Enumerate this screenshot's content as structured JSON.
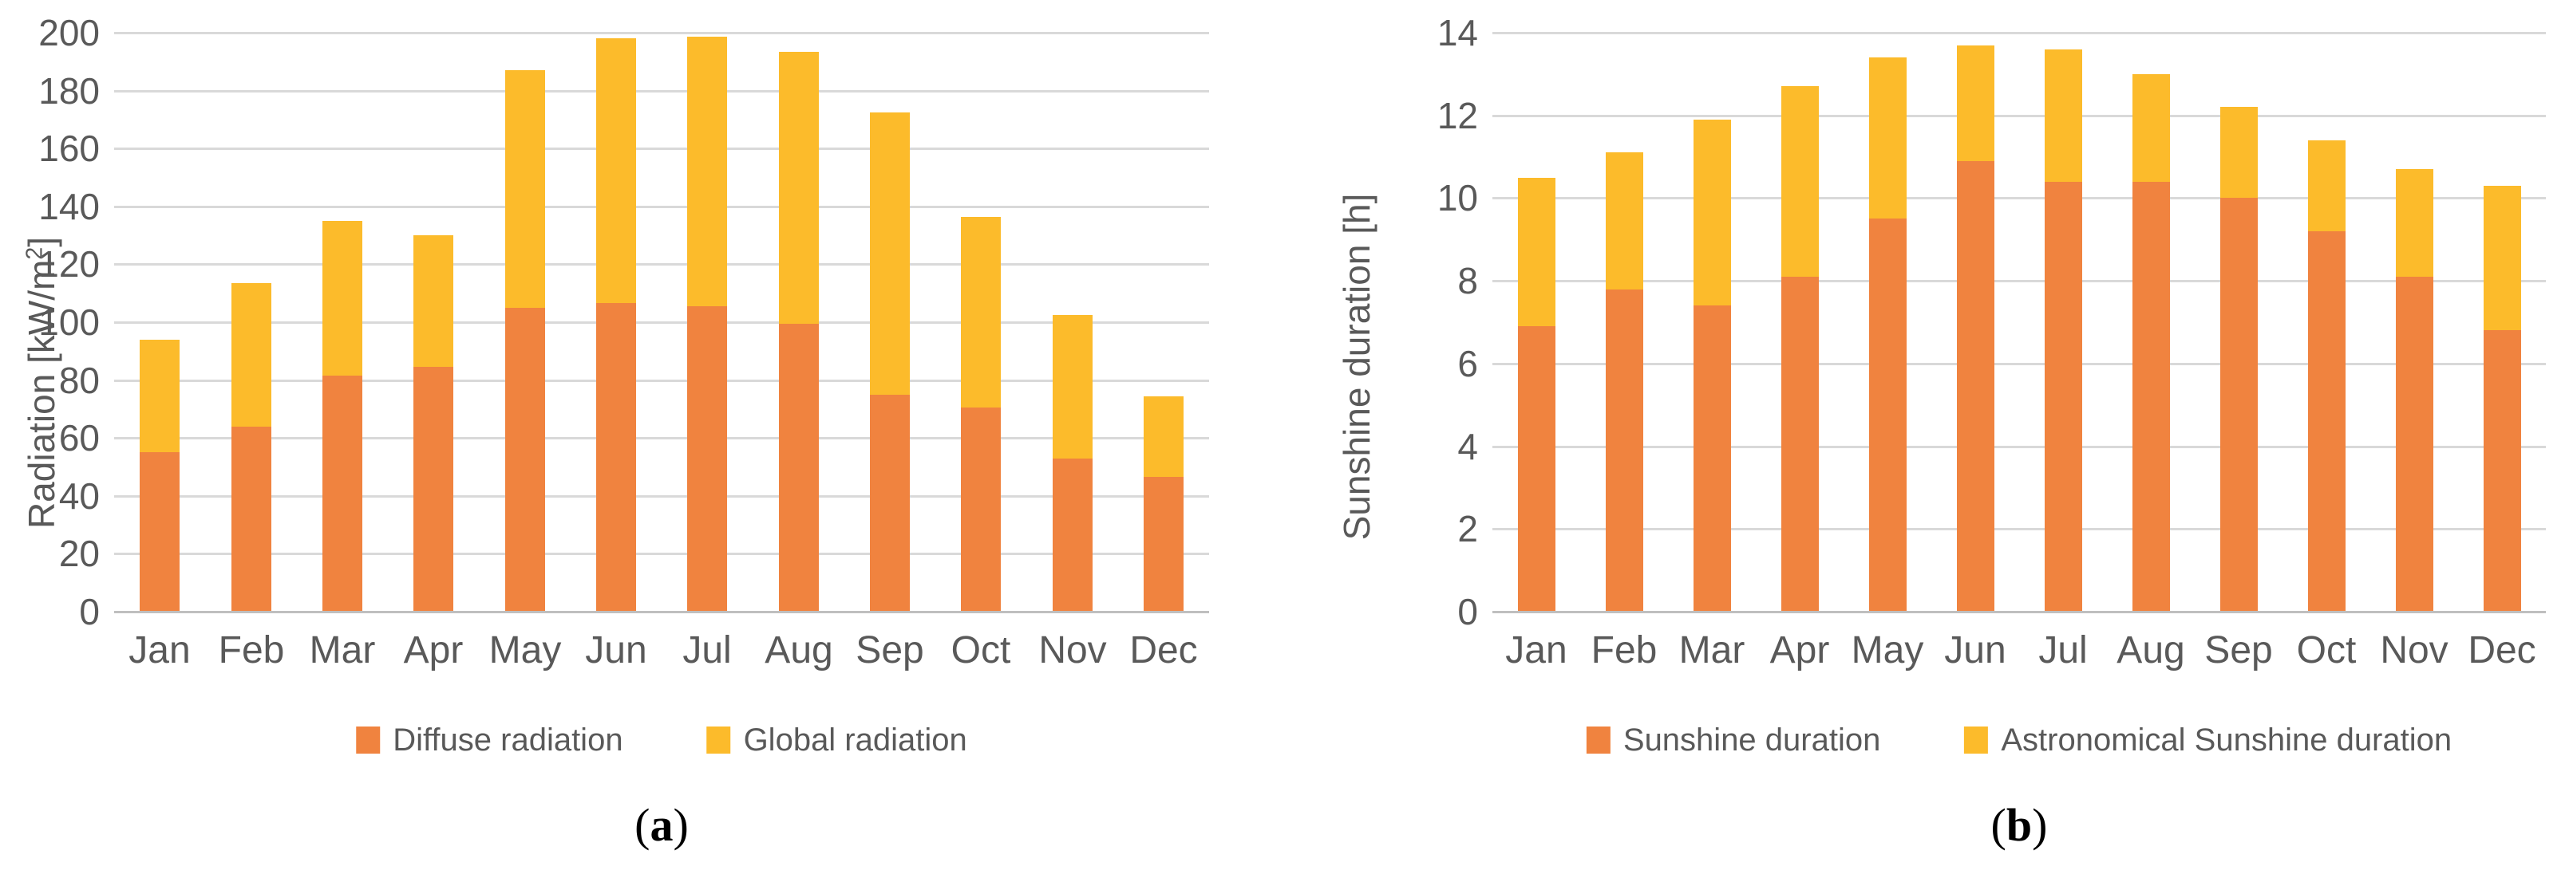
{
  "figure": {
    "colors": {
      "orange": "#F0833F",
      "yellow": "#FCBB2B",
      "text": "#595959",
      "gridline": "#D9D9D9",
      "axis_line": "#BFBFBF",
      "background": "#FFFFFF"
    }
  },
  "chart_data": [
    {
      "id": "a",
      "type": "bar",
      "stacked": true,
      "title": "",
      "xlabel": "",
      "ylabel": "Radiation [kW/m²]",
      "ylabel_parts": {
        "pre": "Radiation [kW/m",
        "sup": "2",
        "post": "]"
      },
      "ylim": [
        0,
        200
      ],
      "ytick_step": 20,
      "yticks": [
        "0",
        "20",
        "40",
        "60",
        "80",
        "100",
        "120",
        "140",
        "160",
        "180",
        "200"
      ],
      "grid": true,
      "legend_position": "bottom",
      "caption": {
        "open": "(",
        "letter": "a",
        "close": ")"
      },
      "categories": [
        "Jan",
        "Feb",
        "Mar",
        "Apr",
        "May",
        "Jun",
        "Jul",
        "Aug",
        "Sep",
        "Oct",
        "Nov",
        "Dec"
      ],
      "series": [
        {
          "name": "Diffuse radiation",
          "color_key": "orange",
          "values": [
            55,
            64,
            81.5,
            84.5,
            105,
            106.5,
            105.5,
            99.5,
            75,
            70.5,
            53,
            46.5
          ]
        },
        {
          "name": "Global radiation",
          "color_key": "yellow",
          "values": [
            39,
            49.5,
            53.5,
            45.5,
            82,
            91.5,
            93,
            94,
            97.5,
            66,
            49.5,
            28
          ]
        }
      ],
      "stack_totals": [
        94,
        113.5,
        135,
        130,
        187,
        198,
        198.5,
        193.5,
        172.5,
        136.5,
        102.5,
        74.5
      ]
    },
    {
      "id": "b",
      "type": "bar",
      "stacked": true,
      "title": "",
      "xlabel": "",
      "ylabel": "Sunshine duration [h]",
      "ylabel_parts": {
        "pre": "Sunshine duration [h]",
        "sup": "",
        "post": ""
      },
      "ylim": [
        0,
        14
      ],
      "ytick_step": 2,
      "yticks": [
        "0",
        "2",
        "4",
        "6",
        "8",
        "10",
        "12",
        "14"
      ],
      "grid": true,
      "legend_position": "bottom",
      "caption": {
        "open": "(",
        "letter": "b",
        "close": ")"
      },
      "categories": [
        "Jan",
        "Feb",
        "Mar",
        "Apr",
        "May",
        "Jun",
        "Jul",
        "Aug",
        "Sep",
        "Oct",
        "Nov",
        "Dec"
      ],
      "series": [
        {
          "name": "Sunshine duration",
          "color_key": "orange",
          "values": [
            6.9,
            7.8,
            7.4,
            8.1,
            9.5,
            10.9,
            10.4,
            10.4,
            10,
            9.2,
            8.1,
            6.8
          ]
        },
        {
          "name": "Astronomical Sunshine duration",
          "color_key": "yellow",
          "values": [
            3.6,
            3.3,
            4.5,
            4.6,
            3.9,
            2.8,
            3.2,
            2.6,
            2.2,
            2.2,
            2.6,
            3.5
          ]
        }
      ],
      "stack_totals": [
        10.5,
        11.1,
        11.9,
        12.7,
        13.4,
        13.7,
        13.6,
        13,
        12.2,
        11.4,
        10.7,
        10.3
      ]
    }
  ]
}
